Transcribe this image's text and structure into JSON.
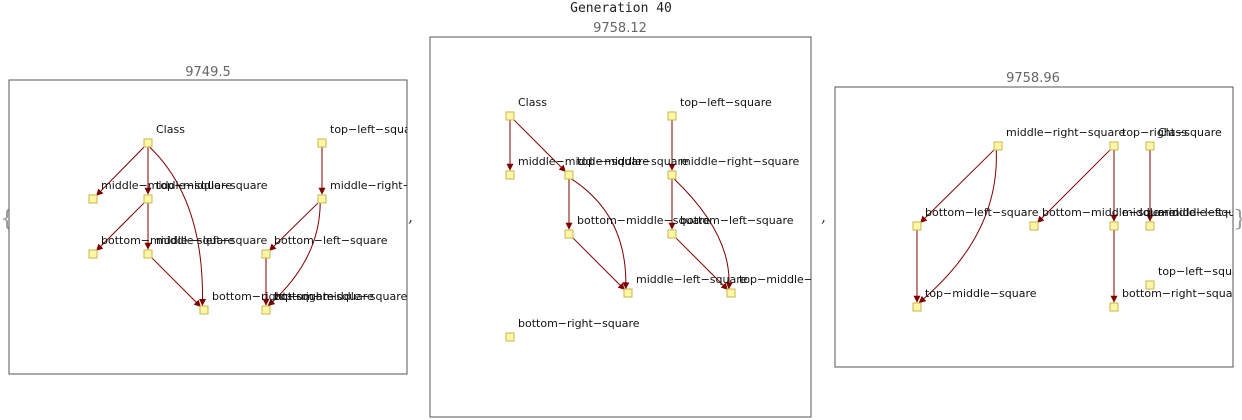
{
  "title": "Generation 40",
  "open_brace": "{",
  "close_brace": "}",
  "separator": ",",
  "colors": {
    "node_fill": "#fff7a8",
    "node_stroke": "#c9b54a",
    "edge": "#800000",
    "frame": "#555555"
  },
  "panels": [
    {
      "score": "9749.5",
      "nodes": [
        {
          "id": "Class",
          "label": "Class"
        },
        {
          "id": "mms",
          "label": "middle−middle−square"
        },
        {
          "id": "tms",
          "label": "top−middle−square"
        },
        {
          "id": "bms",
          "label": "bottom−middle−square"
        },
        {
          "id": "mls",
          "label": "middle−left−square"
        },
        {
          "id": "brs",
          "label": "bottom−right−square"
        },
        {
          "id": "tls",
          "label": "top−left−square"
        },
        {
          "id": "mrs",
          "label": "middle−right−square"
        },
        {
          "id": "bls",
          "label": "bottom−left−square"
        },
        {
          "id": "trs",
          "label": "top−right−square"
        },
        {
          "id": "bms2",
          "label": "bottom−middle−square"
        }
      ],
      "edges": [
        [
          "Class",
          "mms"
        ],
        [
          "Class",
          "tms"
        ],
        [
          "Class",
          "brs"
        ],
        [
          "tms",
          "bms"
        ],
        [
          "tms",
          "mls"
        ],
        [
          "mls",
          "brs"
        ],
        [
          "tls",
          "mrs"
        ],
        [
          "mrs",
          "bls"
        ],
        [
          "mrs",
          "trs"
        ],
        [
          "bls",
          "trs"
        ]
      ]
    },
    {
      "score": "9758.12",
      "nodes": [
        {
          "id": "Class",
          "label": "Class"
        },
        {
          "id": "mms",
          "label": "middle−middle−square"
        },
        {
          "id": "tms",
          "label": "top−middle−square"
        },
        {
          "id": "bms",
          "label": "bottom−middle−square"
        },
        {
          "id": "mls",
          "label": "middle−left−square"
        },
        {
          "id": "tls",
          "label": "top−left−square"
        },
        {
          "id": "mrs",
          "label": "middle−right−square"
        },
        {
          "id": "bls",
          "label": "bottom−left−square"
        },
        {
          "id": "tmid",
          "label": "top−middle−square"
        },
        {
          "id": "brs",
          "label": "bottom−right−square"
        }
      ],
      "edges": [
        [
          "Class",
          "mms"
        ],
        [
          "Class",
          "tms"
        ],
        [
          "tms",
          "bms"
        ],
        [
          "tms",
          "mls"
        ],
        [
          "bms",
          "mls"
        ],
        [
          "tls",
          "mrs"
        ],
        [
          "mrs",
          "bls"
        ],
        [
          "mrs",
          "tmid"
        ],
        [
          "bls",
          "tmid"
        ]
      ]
    },
    {
      "score": "9758.96",
      "nodes": [
        {
          "id": "mrs",
          "label": "middle−right−square"
        },
        {
          "id": "trs",
          "label": "top−right−square"
        },
        {
          "id": "Class",
          "label": "Class"
        },
        {
          "id": "bls",
          "label": "bottom−left−square"
        },
        {
          "id": "bmsq",
          "label": "bottom−middle−square"
        },
        {
          "id": "mms",
          "label": "middle−middle−square"
        },
        {
          "id": "mls",
          "label": "middle−left−square"
        },
        {
          "id": "tls",
          "label": "top−left−square"
        },
        {
          "id": "tms",
          "label": "top−middle−square"
        },
        {
          "id": "brs",
          "label": "bottom−right−square"
        }
      ],
      "edges": [
        [
          "mrs",
          "bls"
        ],
        [
          "mrs",
          "tms"
        ],
        [
          "bls",
          "tms"
        ],
        [
          "trs",
          "bmsq"
        ],
        [
          "trs",
          "mms"
        ],
        [
          "mms",
          "brs"
        ],
        [
          "Class",
          "mls"
        ]
      ]
    }
  ]
}
